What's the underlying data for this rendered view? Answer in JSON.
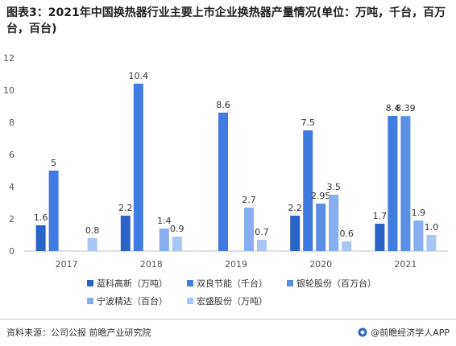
{
  "title": "图表3：2021年中国换热器行业主要上市企业换热器产量情况(单位：万吨，千台，百万台，百台)",
  "chart_data": {
    "type": "bar",
    "categories": [
      "2017",
      "2018",
      "2019",
      "2020",
      "2021"
    ],
    "ylim": [
      0,
      12
    ],
    "yticks": [
      0,
      2,
      4,
      6,
      8,
      10,
      12
    ],
    "grid": false,
    "legend_position": "bottom",
    "series": [
      {
        "name": "蓝科高新（万吨）",
        "color": "#2a63c6",
        "values": [
          1.6,
          2.2,
          null,
          2.2,
          1.7
        ],
        "labels": [
          "1.6",
          "2.2",
          "",
          "2.2",
          "1.7"
        ]
      },
      {
        "name": "双良节能（千台）",
        "color": "#3f7be0",
        "values": [
          5,
          10.4,
          8.6,
          7.5,
          8.4
        ],
        "labels": [
          "5",
          "10.4",
          "8.6",
          "7.5",
          "8.4"
        ]
      },
      {
        "name": "银轮股份（百万台）",
        "color": "#5b8fe3",
        "values": [
          null,
          null,
          null,
          2.95,
          8.39
        ],
        "labels": [
          "",
          "",
          "",
          "2.95",
          "8.39"
        ]
      },
      {
        "name": "宁波精达（百台）",
        "color": "#86aef0",
        "values": [
          null,
          1.4,
          2.7,
          3.5,
          1.9
        ],
        "labels": [
          "",
          "1.4",
          "2.7",
          "3.5",
          "1.9"
        ]
      },
      {
        "name": "宏盛股份（万吨）",
        "color": "#a9c5f5",
        "values": [
          0.8,
          0.9,
          0.7,
          0.6,
          1.0
        ],
        "labels": [
          "0.8",
          "0.9",
          "0.7",
          "0.6",
          "1.0"
        ]
      }
    ]
  },
  "footer": {
    "source": "资料来源：公司公报 前瞻产业研究院",
    "brand": "@前瞻经济学人APP"
  }
}
